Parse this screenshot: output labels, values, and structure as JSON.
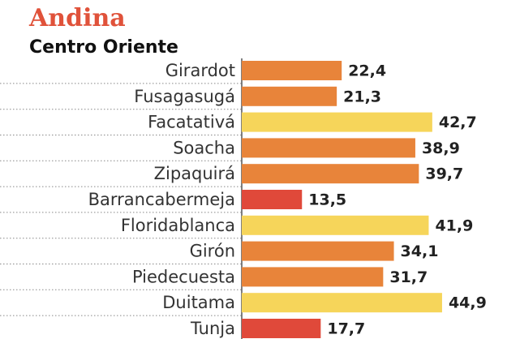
{
  "chart_data": {
    "type": "bar",
    "orientation": "horizontal",
    "title": "Andina",
    "subtitle": "Centro Oriente",
    "categories": [
      "Girardot",
      "Fusagasugá",
      "Facatativá",
      "Soacha",
      "Zipaquirá",
      "Barrancabermeja",
      "Floridablanca",
      "Girón",
      "Piedecuesta",
      "Duitama",
      "Tunja"
    ],
    "values": [
      22.4,
      21.3,
      42.7,
      38.9,
      39.7,
      13.5,
      41.9,
      34.1,
      31.7,
      44.9,
      17.7
    ],
    "value_labels": [
      "22,4",
      "21,3",
      "42,7",
      "38,9",
      "39,7",
      "13,5",
      "41,9",
      "34,1",
      "31,7",
      "44,9",
      "17,7"
    ],
    "colors": [
      "#e8843a",
      "#e8843a",
      "#f6d55a",
      "#e8843a",
      "#e8843a",
      "#e0493a",
      "#f6d55a",
      "#e8843a",
      "#e8843a",
      "#f6d55a",
      "#e0493a"
    ]
  }
}
